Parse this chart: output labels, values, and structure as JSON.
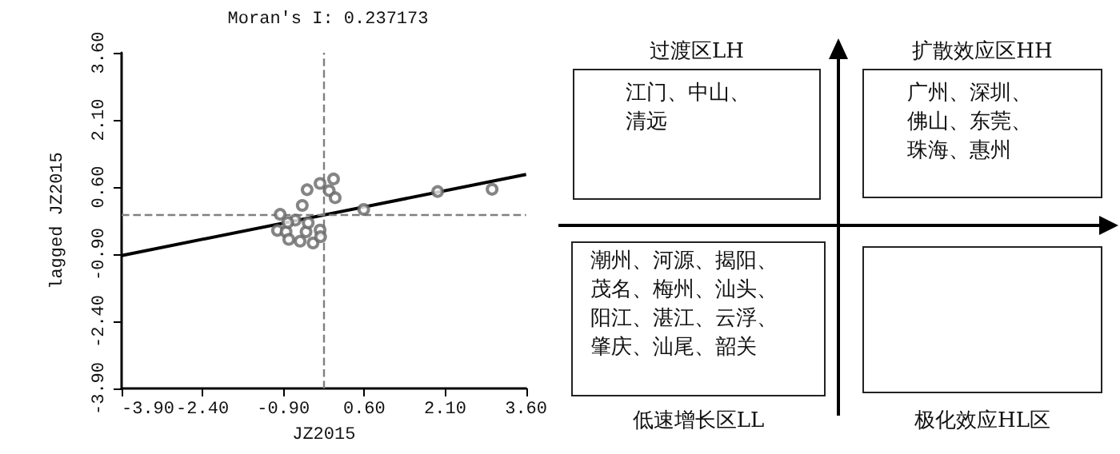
{
  "chart_data": [
    {
      "type": "scatter",
      "title": "Moran's I: 0.237173",
      "xlabel": "JZ2015",
      "ylabel": "lagged JZ2015",
      "xlim": [
        -3.9,
        3.6
      ],
      "ylim": [
        -3.9,
        3.6
      ],
      "xticks": [
        {
          "value": -3.9,
          "label": "-3.90"
        },
        {
          "value": -2.4,
          "label": "-2.40"
        },
        {
          "value": -0.9,
          "label": "-0.90"
        },
        {
          "value": 0.6,
          "label": "0.60"
        },
        {
          "value": 2.1,
          "label": "2.10"
        },
        {
          "value": 3.6,
          "label": "3.60"
        }
      ],
      "yticks": [
        {
          "value": -3.9,
          "label": "-3.90"
        },
        {
          "value": -2.4,
          "label": "-2.40"
        },
        {
          "value": -0.9,
          "label": "-0.90"
        },
        {
          "value": 0.6,
          "label": "0.60"
        },
        {
          "value": 2.1,
          "label": "2.10"
        },
        {
          "value": 3.6,
          "label": "3.60"
        }
      ],
      "series": [
        {
          "type": "scatter",
          "color": "#666666",
          "marker": "circle",
          "x": [
            -0.96,
            -1.01,
            -0.85,
            -0.8,
            -0.68,
            -0.82,
            -0.55,
            -0.46,
            -0.59,
            -0.48,
            -0.44,
            -0.35,
            -0.22,
            -0.21,
            -0.22,
            -0.05,
            0.03,
            0.06,
            0.59,
            1.96,
            2.97
          ],
          "values": [
            -0.01,
            -0.37,
            -0.4,
            -0.57,
            -0.14,
            -0.19,
            0.19,
            0.54,
            -0.61,
            -0.4,
            -0.2,
            -0.65,
            -0.36,
            -0.51,
            0.68,
            0.52,
            0.78,
            0.36,
            0.1,
            0.5,
            0.55
          ]
        },
        {
          "type": "line",
          "color": "#000000",
          "marker": "none",
          "x": [
            -3.9,
            3.6
          ],
          "values": [
            -0.93,
            0.88
          ]
        }
      ],
      "ref_lines": [
        {
          "axis": "x",
          "value": -0.15,
          "color": "#808080",
          "line_style": "dashed"
        },
        {
          "axis": "y",
          "value": 0,
          "color": "#808080",
          "line_style": "dashed"
        }
      ],
      "grid": false
    },
    {
      "type": "other",
      "annotations": [
        "过渡区LH",
        "江门、中山、清远",
        "扩散效应区HH",
        "广州、深圳、佛山、东莞、珠海、惠州",
        "潮州、河源、揭阳、茂名、梅州、汕头、阳江、湛江、云浮、肇庆、汕尾、韶关",
        "低速增长区LL",
        "极化效应HL区"
      ]
    }
  ]
}
